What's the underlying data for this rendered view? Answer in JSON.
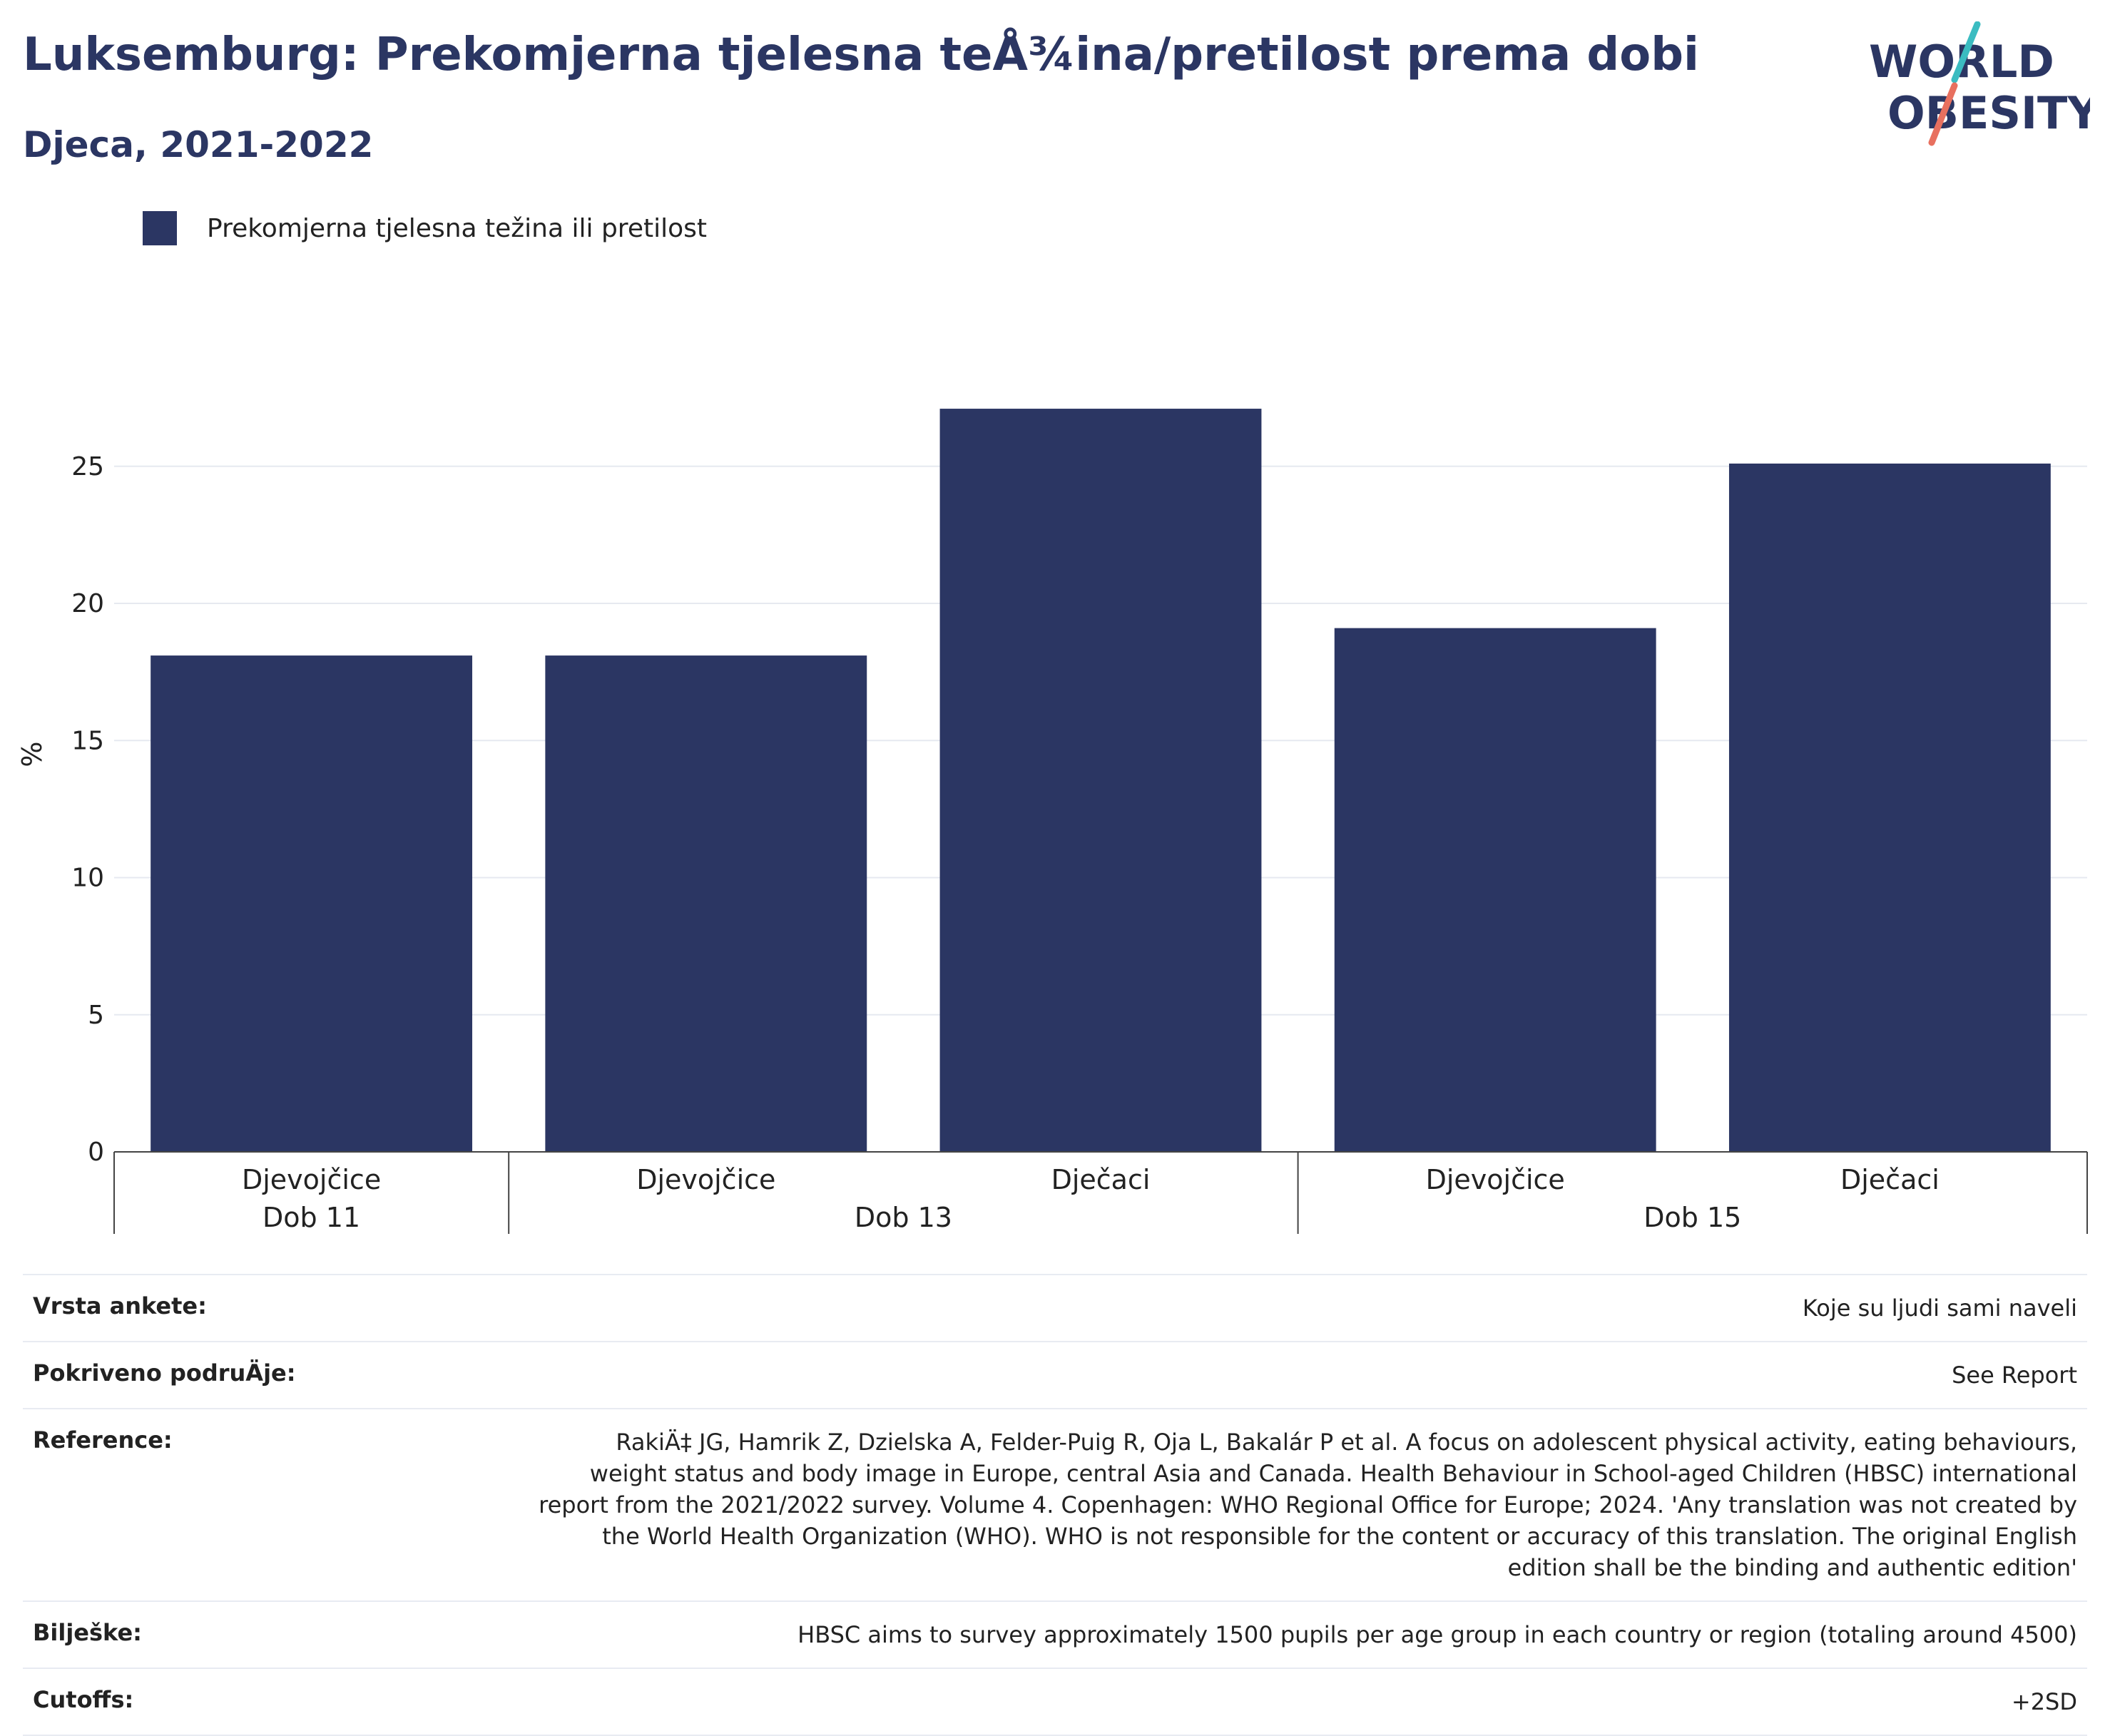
{
  "header": {
    "title": "Luksemburg: Prekomjerna tjelesna teÅ¾ina/pretilost prema dobi",
    "subtitle": "Djeca, 2021-2022"
  },
  "logo": {
    "line1": "WORLD",
    "line2": "OBESITY",
    "accent_teal": "#3bbcc1",
    "accent_coral": "#e8705f"
  },
  "colors": {
    "bar": "#2b3663",
    "grid": "#e6e9f0",
    "axis": "#444444"
  },
  "chart_data": {
    "type": "bar",
    "ylabel": "%",
    "ylim": [
      0,
      29
    ],
    "yticks": [
      0,
      5,
      10,
      15,
      20,
      25
    ],
    "grid": true,
    "legend_position": "top-left",
    "series": [
      {
        "name": "Prekomjerna tjelesna težina ili pretilost",
        "values": [
          18.1,
          18.1,
          27.1,
          19.1,
          25.1
        ]
      }
    ],
    "categories": [
      "Djevojčice",
      "Djevojčice",
      "Dječaci",
      "Djevojčice",
      "Dječaci"
    ],
    "groups": [
      {
        "label": "Dob 11",
        "count": 1
      },
      {
        "label": "Dob 13",
        "count": 2
      },
      {
        "label": "Dob 15",
        "count": 2
      }
    ]
  },
  "info": [
    {
      "label": "Vrsta ankete:",
      "value": "Koje su ljudi sami naveli"
    },
    {
      "label": "Pokriveno podruÄ\u001fje:",
      "value": "See Report"
    },
    {
      "label": "Reference:",
      "value": "RakiÄ‡ JG, Hamrik Z, Dzielska A, Felder-Puig R, Oja L, Bakalár P et al. A focus on adolescent physical activity, eating behaviours, weight status and body image in Europe, central Asia and Canada. Health Behaviour in School-aged Children (HBSC) international report from the 2021/2022 survey. Volume 4. Copenhagen: WHO Regional Office for Europe; 2024. 'Any translation was not created by the World Health Organization (WHO). WHO is not responsible for the content or accuracy of this translation. The original English edition shall be the binding and authentic edition'"
    },
    {
      "label": "Bilješke:",
      "value": "HBSC aims to survey approximately 1500 pupils per age group in each country or region (totaling around 4500)"
    },
    {
      "label": "Cutoffs:",
      "value": "+2SD"
    }
  ]
}
